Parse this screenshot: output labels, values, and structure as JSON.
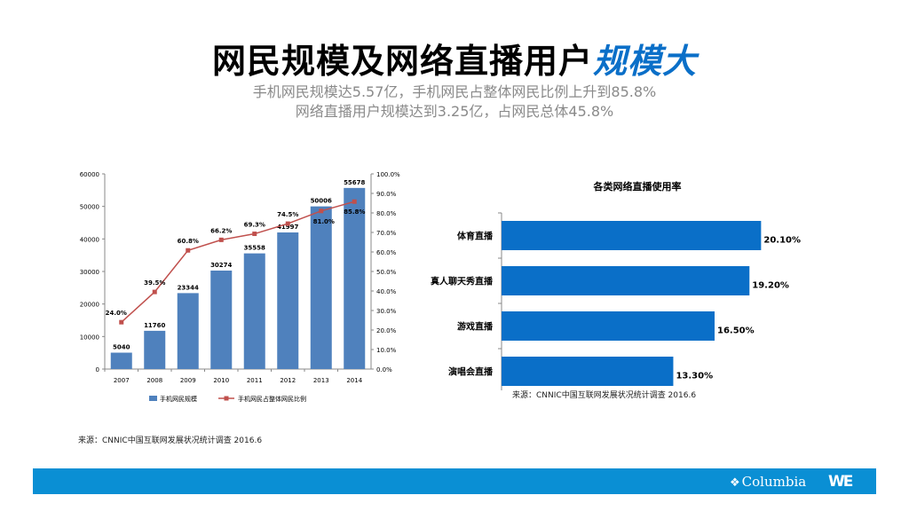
{
  "header": {
    "title_main": "网民规模及网络直播用户",
    "title_highlight": "规模大",
    "subtitle_line1": "手机网民规模达5.57亿，手机网民占整体网民比例上升到85.8%",
    "subtitle_line2": "网络直播用户规模达到3.25亿，占网民总体45.8%"
  },
  "colors": {
    "bar": "#4f81bd",
    "line": "#c0504d",
    "hbar": "#0a6fc8",
    "footer": "#0a8fd4",
    "highlight": "#0a6fc8"
  },
  "chart_data": [
    {
      "type": "bar",
      "title": "",
      "categories": [
        "2007",
        "2008",
        "2009",
        "2010",
        "2011",
        "2012",
        "2013",
        "2014"
      ],
      "series": [
        {
          "name": "手机网民规模",
          "kind": "bar",
          "axis": "left",
          "values": [
            5040,
            11760,
            23344,
            30274,
            35558,
            41997,
            50006,
            55678
          ],
          "labels": [
            "5040",
            "11760",
            "23344",
            "30274",
            "35558",
            "41997",
            "50006",
            "55678"
          ]
        },
        {
          "name": "手机网民占整体网民比例",
          "kind": "line",
          "axis": "right",
          "values": [
            24.0,
            39.5,
            60.8,
            66.2,
            69.3,
            74.5,
            81.0,
            85.8
          ],
          "labels": [
            "24.0%",
            "39.5%",
            "60.8%",
            "66.2%",
            "69.3%",
            "74.5%",
            "81.0%",
            "85.8%"
          ]
        }
      ],
      "ylim": [
        0,
        60000
      ],
      "yticks": [
        "0",
        "10000",
        "20000",
        "30000",
        "40000",
        "50000",
        "60000"
      ],
      "y2lim": [
        0,
        100
      ],
      "y2ticks": [
        "0.0%",
        "10.0%",
        "20.0%",
        "30.0%",
        "40.0%",
        "50.0%",
        "60.0%",
        "70.0%",
        "80.0%",
        "90.0%",
        "100.0%"
      ],
      "legend_position": "bottom",
      "source": "来源：CNNIC中国互联网发展状况统计调查 2016.6"
    },
    {
      "type": "bar",
      "orientation": "horizontal",
      "title": "各类网络直播使用率",
      "categories": [
        "体育直播",
        "真人聊天秀直播",
        "游戏直播",
        "演唱会直播"
      ],
      "values": [
        20.1,
        19.2,
        16.5,
        13.3
      ],
      "labels": [
        "20.10%",
        "19.20%",
        "16.50%",
        "13.30%"
      ],
      "xlim": [
        0,
        22
      ],
      "source": "来源：CNNIC中国互联网发展状况统计调查 2016.6"
    }
  ],
  "footer": {
    "brand": "Columbia",
    "logo": "WE"
  }
}
